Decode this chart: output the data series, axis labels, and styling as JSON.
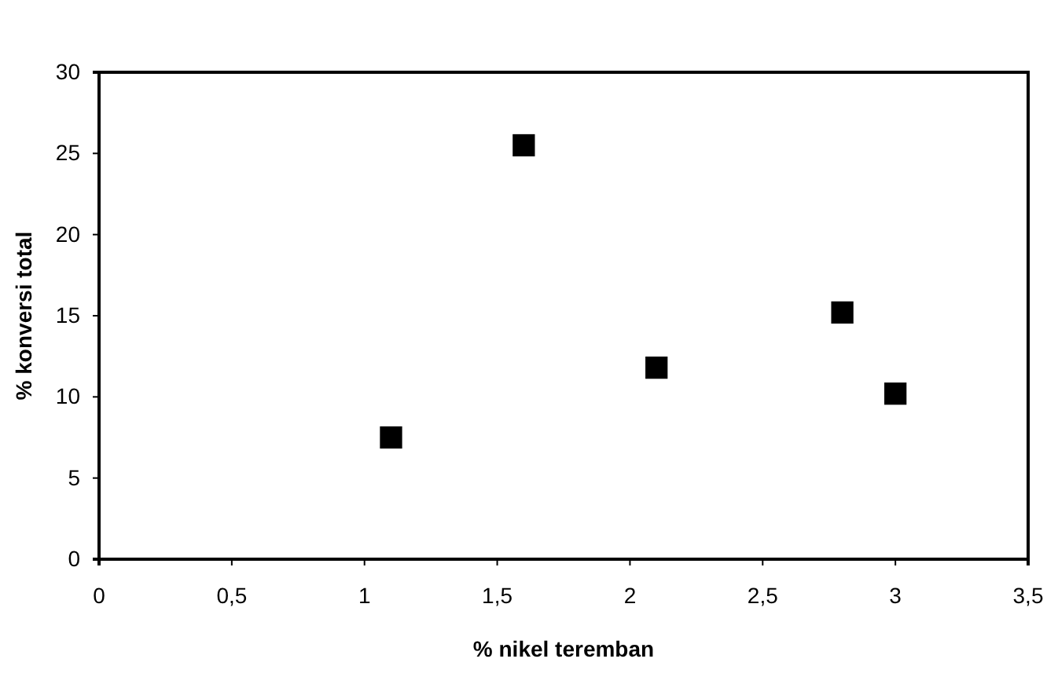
{
  "chart_data": {
    "type": "scatter",
    "xlabel": "% nikel teremban",
    "ylabel": "% konversi total",
    "x": [
      1.1,
      1.6,
      2.1,
      2.8,
      3.0
    ],
    "values": [
      7.5,
      25.5,
      11.8,
      15.2,
      10.2
    ],
    "color": "#000000",
    "marker": "square",
    "xlim": [
      0,
      3.5
    ],
    "xticks": [
      0,
      {
        "value": 0.5,
        "label": "0,5"
      },
      1,
      {
        "value": 1.5,
        "label": "1,5"
      },
      2,
      {
        "value": 2.5,
        "label": "2,5"
      },
      3,
      {
        "value": 3.5,
        "label": "3,5"
      }
    ],
    "ylim": [
      0,
      30
    ],
    "yticks": [
      0,
      5,
      10,
      15,
      20,
      25,
      30
    ],
    "grid": false
  }
}
